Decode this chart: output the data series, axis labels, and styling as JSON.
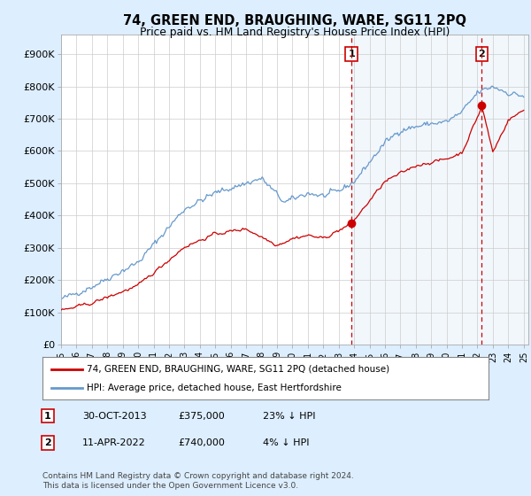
{
  "title": "74, GREEN END, BRAUGHING, WARE, SG11 2PQ",
  "subtitle": "Price paid vs. HM Land Registry's House Price Index (HPI)",
  "ylabel_ticks": [
    "£0",
    "£100K",
    "£200K",
    "£300K",
    "£400K",
    "£500K",
    "£600K",
    "£700K",
    "£800K",
    "£900K"
  ],
  "ytick_values": [
    0,
    100000,
    200000,
    300000,
    400000,
    500000,
    600000,
    700000,
    800000,
    900000
  ],
  "ylim": [
    0,
    950000
  ],
  "xlim_start": 1995.0,
  "xlim_end": 2025.3,
  "sale1_date": 2013.83,
  "sale1_price": 375000,
  "sale1_label": "1",
  "sale1_text": "30-OCT-2013",
  "sale1_amount": "£375,000",
  "sale1_hpi": "23% ↓ HPI",
  "sale2_date": 2022.28,
  "sale2_price": 740000,
  "sale2_label": "2",
  "sale2_text": "11-APR-2022",
  "sale2_amount": "£740,000",
  "sale2_hpi": "4% ↓ HPI",
  "legend_line1": "74, GREEN END, BRAUGHING, WARE, SG11 2PQ (detached house)",
  "legend_line2": "HPI: Average price, detached house, East Hertfordshire",
  "footnote": "Contains HM Land Registry data © Crown copyright and database right 2024.\nThis data is licensed under the Open Government Licence v3.0.",
  "red_color": "#cc0000",
  "blue_color": "#6699cc",
  "blue_fill": "#cce0f5",
  "bg_color": "#ddeeff",
  "plot_bg": "#ffffff",
  "grid_color": "#cccccc"
}
